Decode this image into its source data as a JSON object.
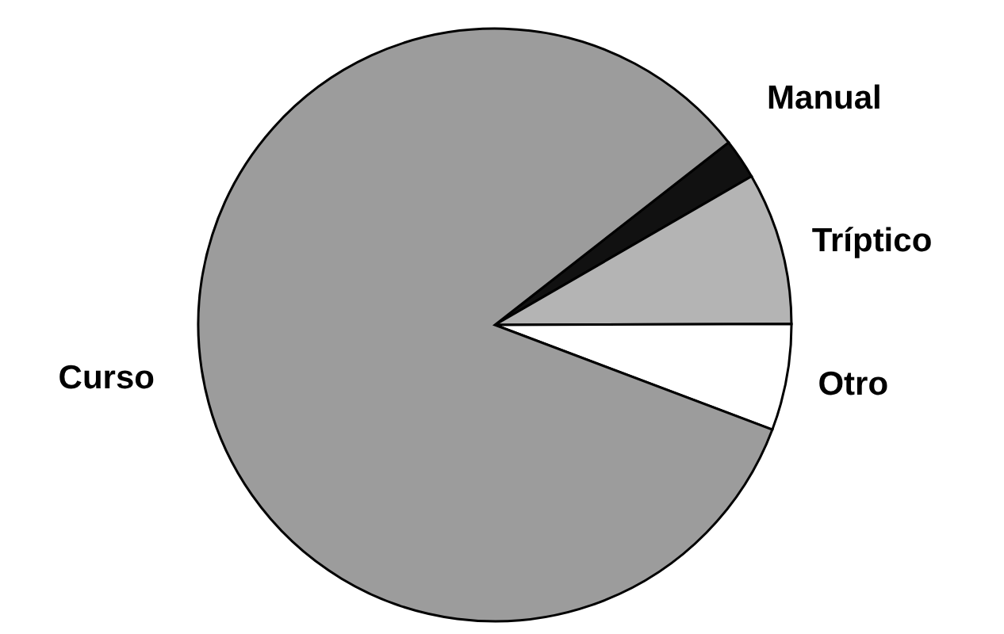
{
  "chart_data": {
    "type": "pie",
    "categories": [
      "Manual",
      "Tríptico",
      "Otro",
      "Curso"
    ],
    "values": [
      2.2,
      8.3,
      5.8,
      83.7
    ],
    "colors": [
      "#111111",
      "#b4b4b4",
      "#ffffff",
      "#9c9c9c"
    ]
  }
}
